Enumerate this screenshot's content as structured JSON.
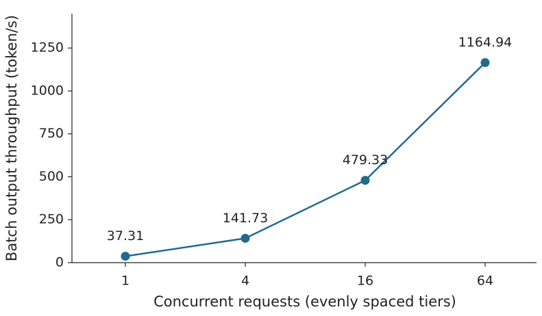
{
  "chart_data": {
    "type": "line",
    "x_label": "Concurrent requests (evenly spaced tiers)",
    "y_label": "Batch output throughput (token/s)",
    "categories": [
      "1",
      "4",
      "16",
      "64"
    ],
    "values": [
      37.31,
      141.73,
      479.33,
      1164.94
    ],
    "color": "#22698f",
    "ylim": [
      0,
      1450
    ],
    "yticks": [
      0,
      250,
      500,
      750,
      1000,
      1250
    ],
    "grid": false
  }
}
